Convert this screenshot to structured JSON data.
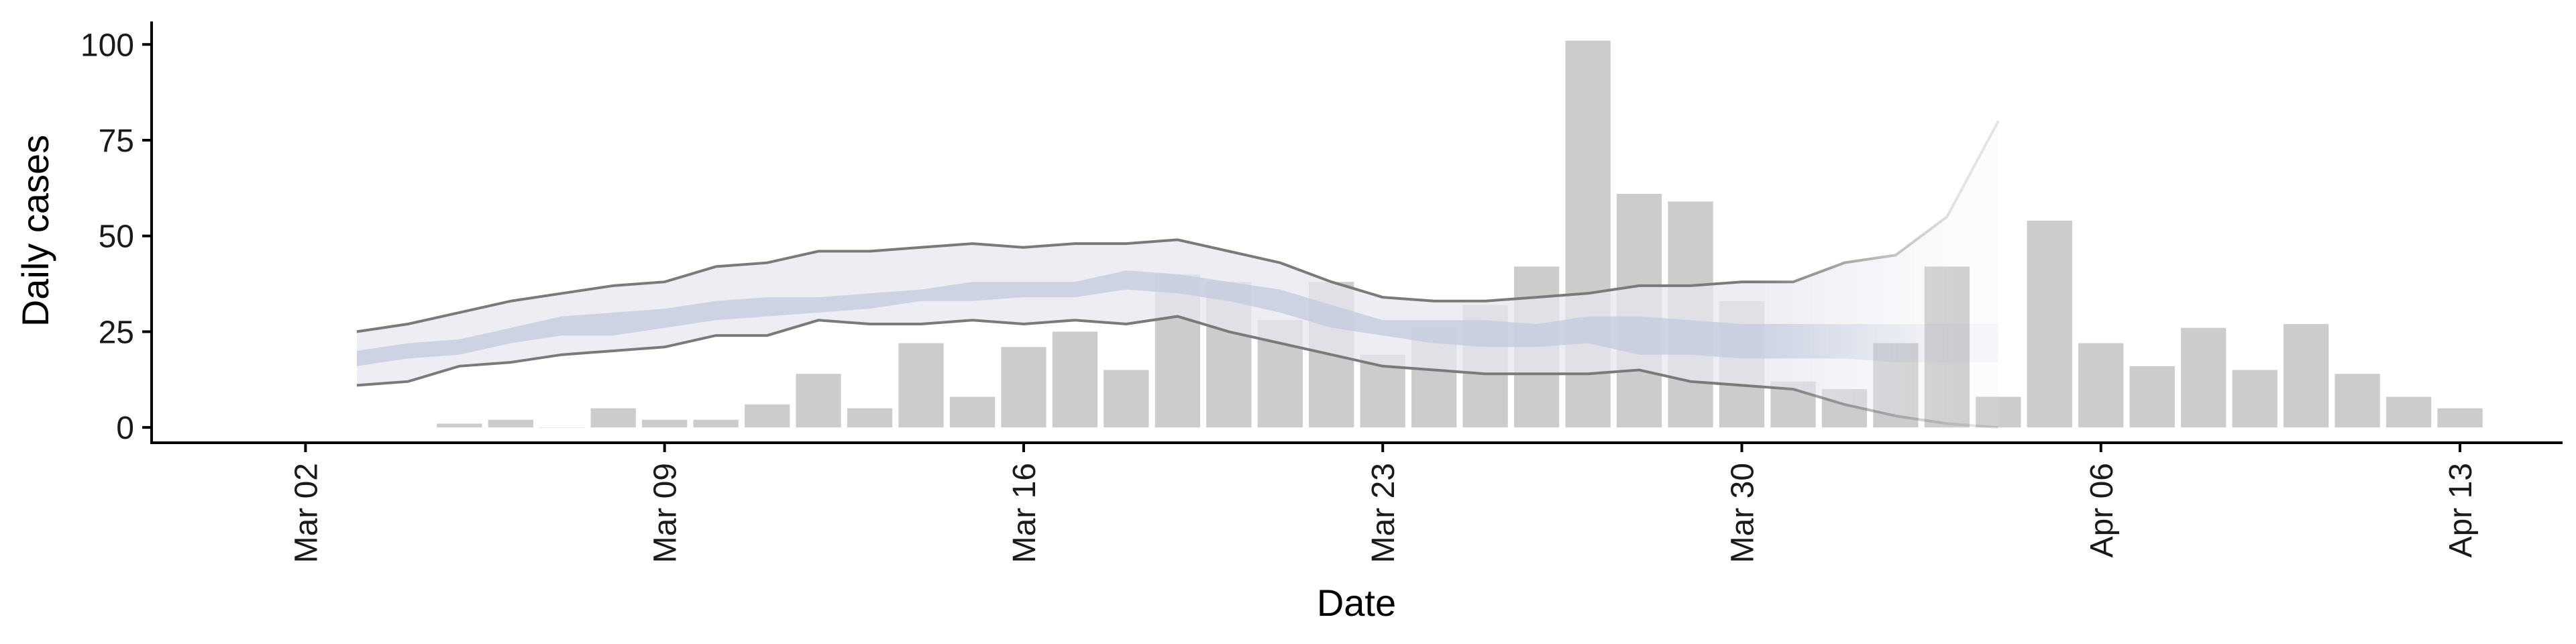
{
  "chart_data": {
    "type": "bar",
    "title": "",
    "xlabel": "Date",
    "ylabel": "Daily cases",
    "ylim": [
      -4,
      106
    ],
    "xlim": [
      "2020-02-28",
      "2020-04-15"
    ],
    "y_ticks": [
      0,
      25,
      50,
      75,
      100
    ],
    "y_tick_labels": [
      "0",
      "25",
      "50",
      "75",
      "100"
    ],
    "x_ticks": [
      "2020-03-02",
      "2020-03-09",
      "2020-03-16",
      "2020-03-23",
      "2020-03-30",
      "2020-04-06",
      "2020-04-13"
    ],
    "x_tick_labels": [
      "Mar 02",
      "Mar 09",
      "Mar 16",
      "Mar 23",
      "Mar 30",
      "Apr 06",
      "Apr 13"
    ],
    "grid": false,
    "legend": "none",
    "bars": {
      "name": "Daily cases",
      "color": "#cccccc",
      "dates": [
        "2020-03-05",
        "2020-03-06",
        "2020-03-07",
        "2020-03-08",
        "2020-03-09",
        "2020-03-10",
        "2020-03-11",
        "2020-03-12",
        "2020-03-13",
        "2020-03-14",
        "2020-03-15",
        "2020-03-16",
        "2020-03-17",
        "2020-03-18",
        "2020-03-19",
        "2020-03-20",
        "2020-03-21",
        "2020-03-22",
        "2020-03-23",
        "2020-03-24",
        "2020-03-25",
        "2020-03-26",
        "2020-03-27",
        "2020-03-28",
        "2020-03-29",
        "2020-03-30",
        "2020-03-31",
        "2020-04-01",
        "2020-04-02",
        "2020-04-03",
        "2020-04-04",
        "2020-04-05",
        "2020-04-06",
        "2020-04-07",
        "2020-04-08",
        "2020-04-09",
        "2020-04-10",
        "2020-04-11",
        "2020-04-12",
        "2020-04-13"
      ],
      "values": [
        1,
        2,
        0,
        5,
        2,
        2,
        6,
        14,
        5,
        22,
        8,
        21,
        25,
        15,
        40,
        38,
        28,
        38,
        19,
        26,
        32,
        42,
        101,
        61,
        59,
        33,
        12,
        10,
        22,
        42,
        8,
        54,
        22,
        16,
        26,
        15,
        27,
        14,
        8,
        5
      ]
    },
    "estimate": {
      "dates": [
        "2020-03-03",
        "2020-03-04",
        "2020-03-05",
        "2020-03-06",
        "2020-03-07",
        "2020-03-08",
        "2020-03-09",
        "2020-03-10",
        "2020-03-11",
        "2020-03-12",
        "2020-03-13",
        "2020-03-14",
        "2020-03-15",
        "2020-03-16",
        "2020-03-17",
        "2020-03-18",
        "2020-03-19",
        "2020-03-20",
        "2020-03-21",
        "2020-03-22",
        "2020-03-23",
        "2020-03-24",
        "2020-03-25",
        "2020-03-26",
        "2020-03-27",
        "2020-03-28",
        "2020-03-29",
        "2020-03-30",
        "2020-03-31",
        "2020-04-01",
        "2020-04-02",
        "2020-04-03",
        "2020-04-04"
      ],
      "upper90": [
        25,
        27,
        30,
        33,
        35,
        37,
        38,
        42,
        43,
        46,
        46,
        47,
        48,
        47,
        48,
        48,
        49,
        46,
        43,
        38,
        34,
        33,
        33,
        34,
        35,
        37,
        37,
        38,
        38,
        43,
        45,
        55,
        80
      ],
      "upper50": [
        20,
        22,
        23,
        26,
        29,
        30,
        31,
        33,
        34,
        34,
        35,
        36,
        38,
        38,
        38,
        41,
        40,
        38,
        36,
        32,
        28,
        28,
        28,
        27,
        29,
        29,
        28,
        27,
        27,
        27,
        27,
        27,
        27
      ],
      "lower50": [
        16,
        18,
        19,
        22,
        24,
        24,
        26,
        28,
        29,
        30,
        31,
        33,
        33,
        34,
        34,
        36,
        35,
        33,
        30,
        26,
        24,
        22,
        21,
        21,
        22,
        19,
        19,
        18,
        18,
        18,
        17,
        17,
        17
      ],
      "lower90": [
        11,
        12,
        16,
        17,
        19,
        20,
        21,
        24,
        24,
        28,
        27,
        27,
        28,
        27,
        28,
        27,
        29,
        25,
        22,
        19,
        16,
        15,
        14,
        14,
        14,
        15,
        12,
        11,
        10,
        6,
        3,
        1,
        0
      ],
      "estimate_type": [
        "estimate",
        "estimate",
        "estimate",
        "estimate",
        "estimate",
        "estimate",
        "estimate",
        "estimate",
        "estimate",
        "estimate",
        "estimate",
        "estimate",
        "estimate",
        "estimate",
        "estimate",
        "estimate",
        "estimate",
        "estimate",
        "estimate",
        "estimate",
        "estimate",
        "estimate",
        "estimate",
        "estimate",
        "estimate",
        "estimate",
        "estimate",
        "estimate",
        "estimate",
        "partial",
        "partial",
        "partial",
        "partial"
      ],
      "outer_band_color": "#e6e8f0",
      "inner_band_color": "#c3cadd",
      "bound_line_color": "#7a7a7a"
    }
  }
}
